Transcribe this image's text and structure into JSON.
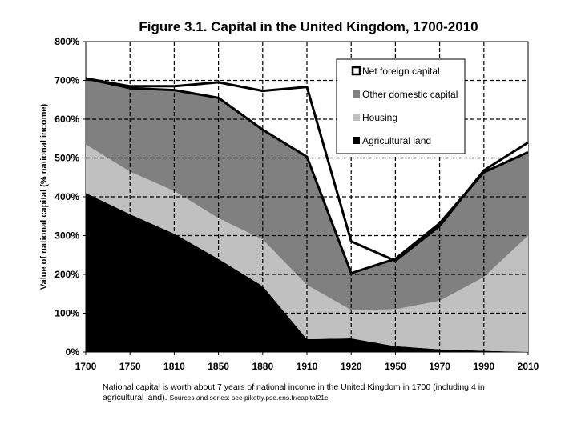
{
  "chart_data": {
    "type": "area",
    "title": "Figure 3.1. Capital in the United Kingdom, 1700-2010",
    "ylabel": "Value of national capital (% national income)",
    "xlabel": "",
    "x_ticks": [
      "1700",
      "1750",
      "1810",
      "1850",
      "1880",
      "1910",
      "1920",
      "1950",
      "1970",
      "1990",
      "2010"
    ],
    "ylim": [
      0,
      800
    ],
    "y_ticks": [
      0,
      100,
      200,
      300,
      400,
      500,
      600,
      700,
      800
    ],
    "y_tick_labels": [
      "0%",
      "100%",
      "200%",
      "300%",
      "400%",
      "500%",
      "600%",
      "700%",
      "800%"
    ],
    "grid": "dashed vertical and horizontal",
    "series": [
      {
        "name": "Agricultural land",
        "color": "#000000",
        "values": [
          410,
          355,
          305,
          240,
          170,
          33,
          35,
          15,
          7,
          3,
          0
        ]
      },
      {
        "name": "Housing",
        "color": "#c0c0c0",
        "values": [
          125,
          110,
          110,
          105,
          120,
          140,
          73,
          95,
          125,
          190,
          300
        ]
      },
      {
        "name": "Other domestic capital",
        "color": "#808080",
        "values": [
          170,
          215,
          260,
          310,
          283,
          330,
          95,
          130,
          200,
          270,
          215
        ]
      },
      {
        "name": "Net foreign capital",
        "color": "#ffffff",
        "values": [
          0,
          5,
          10,
          40,
          100,
          180,
          82,
          -5,
          -7,
          5,
          25
        ]
      }
    ],
    "national_capital_total": [
      705,
      680,
      675,
      655,
      573,
      503,
      203,
      240,
      325,
      463,
      515
    ],
    "legend": {
      "position": "top-right",
      "entries": [
        "Net foreign capital",
        "Other domestic capital",
        "Housing",
        "Agricultural land"
      ]
    }
  },
  "footnote": {
    "main": "National capital is worth about 7 years of national income in the United Kingdom in 1700 (including 4 in agricultural land).",
    "source": "Sources and series: see piketty.pse.ens.fr/capital21c."
  }
}
